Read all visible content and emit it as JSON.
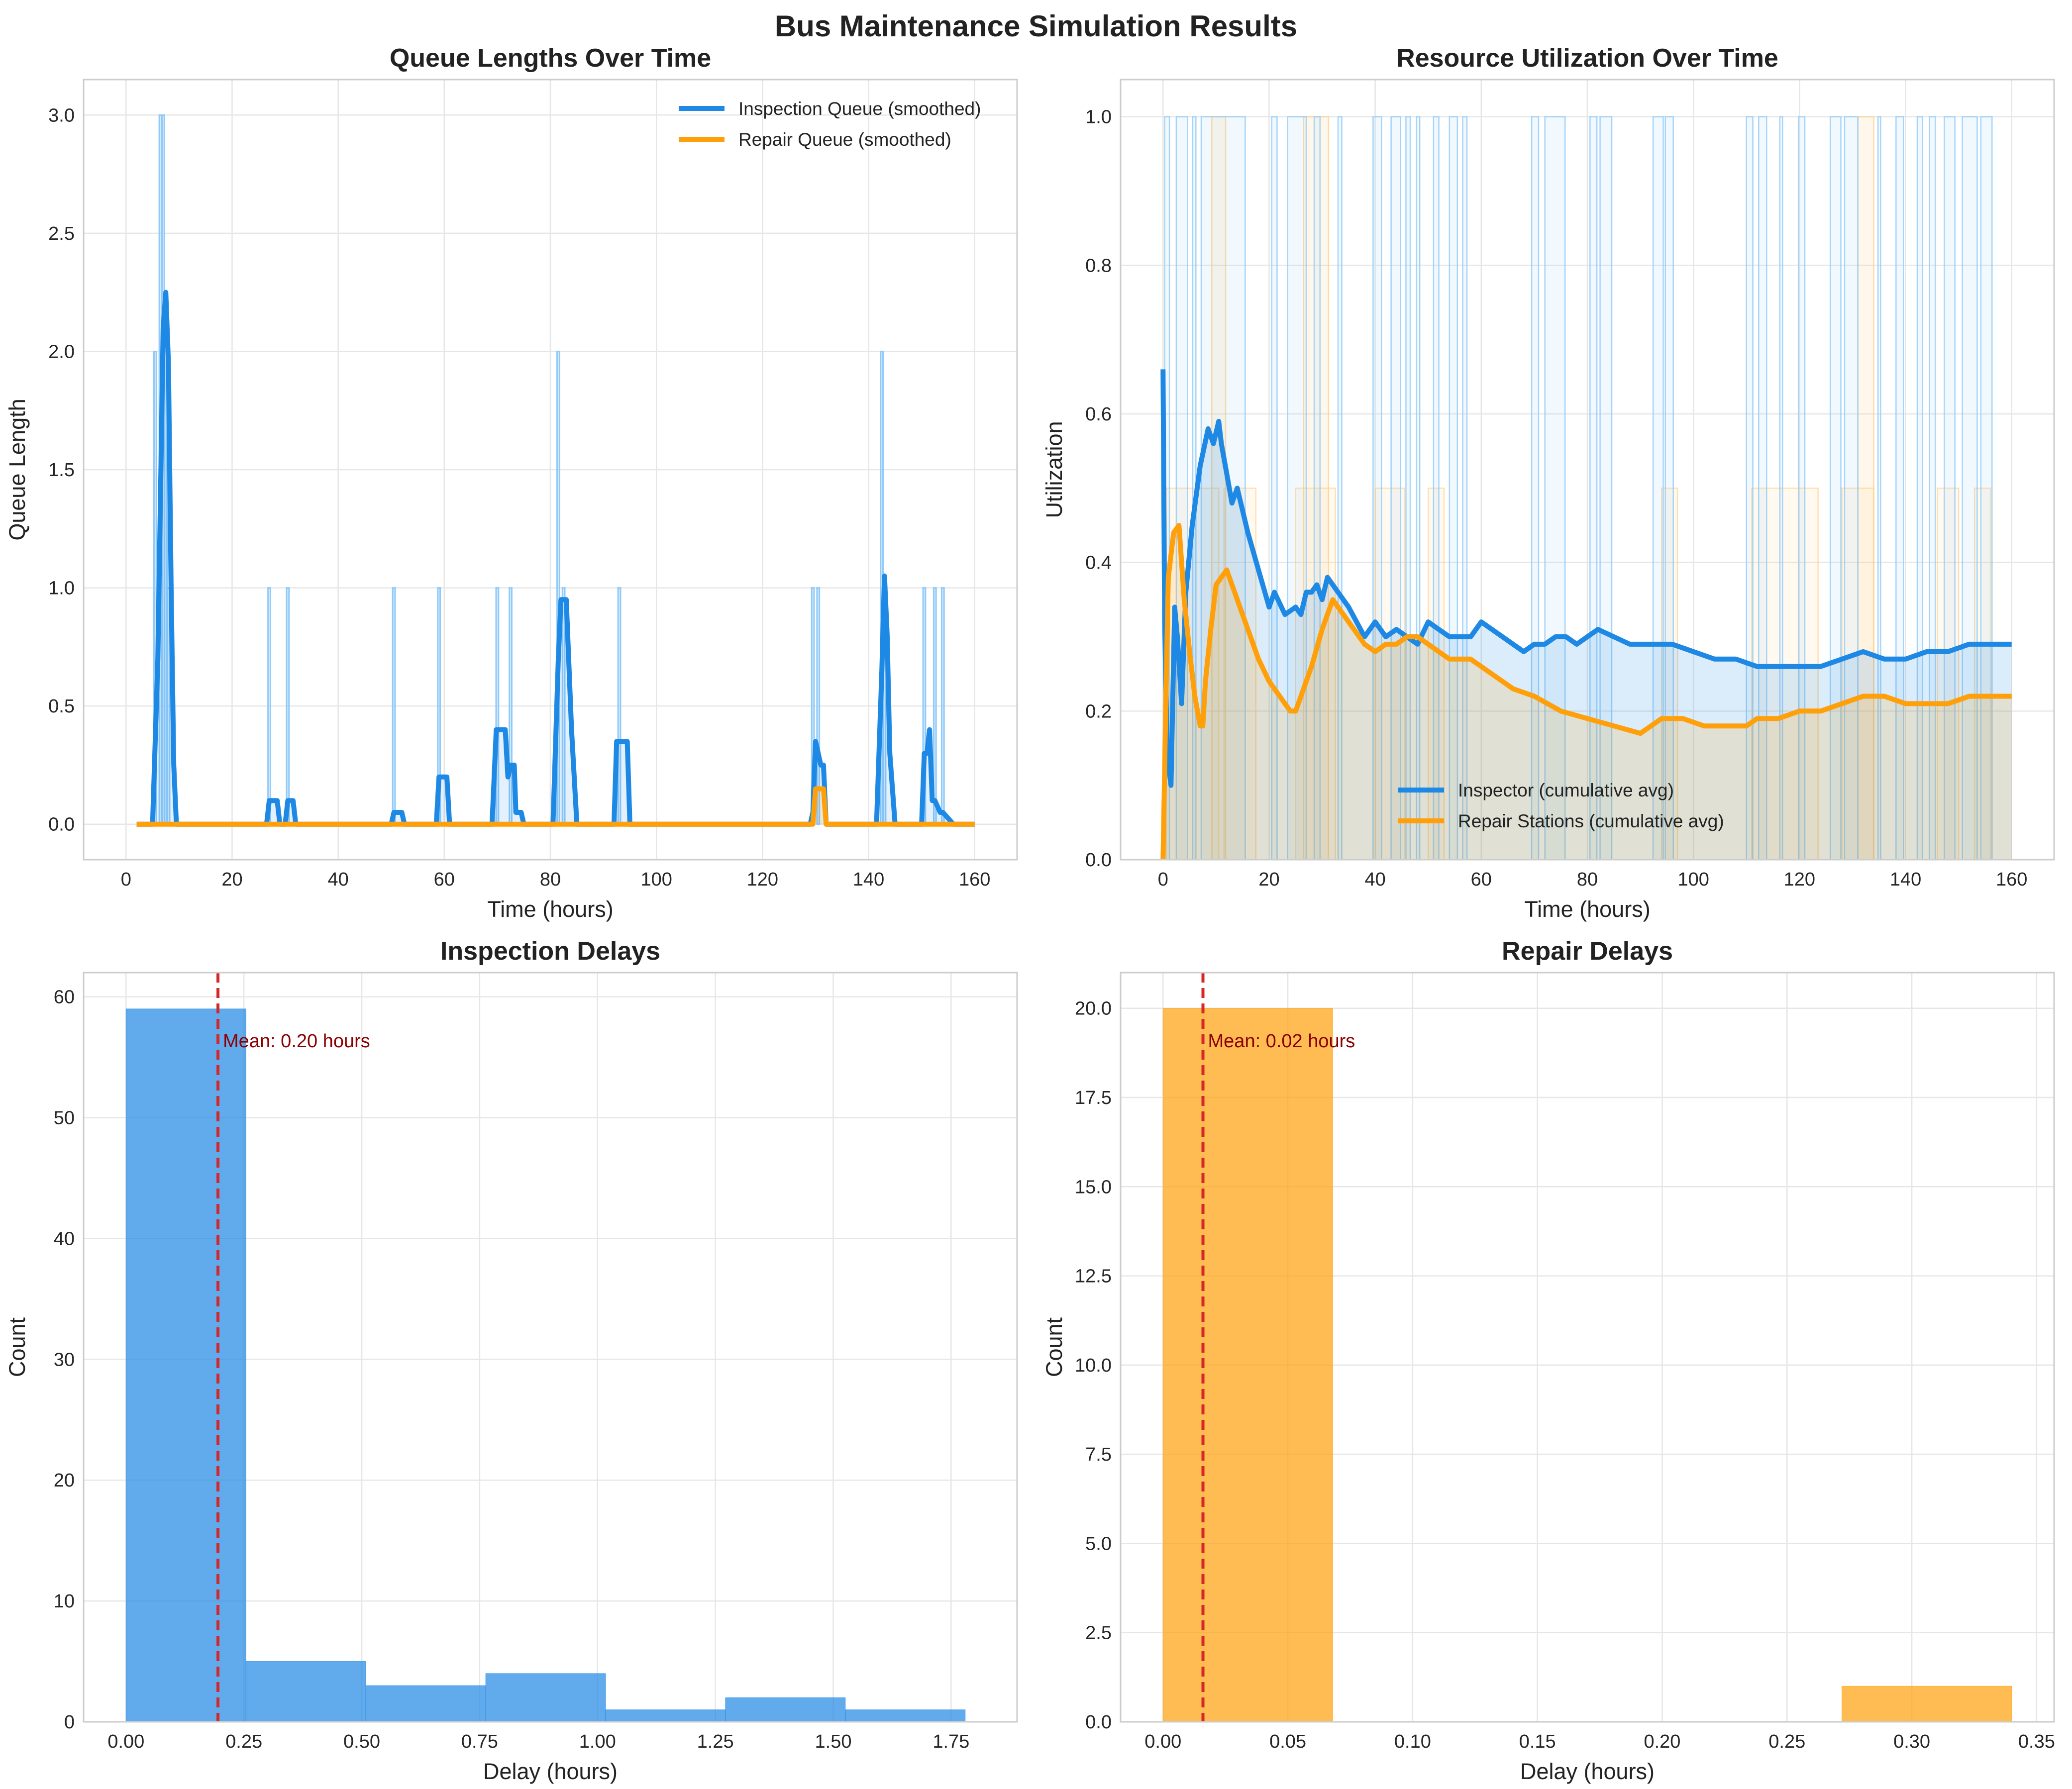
{
  "figure": {
    "suptitle": "Bus Maintenance Simulation Results"
  },
  "colors": {
    "inspection": "#1e88e5",
    "inspection_light": "#90caf9",
    "repair": "#ff9f0a",
    "repair_light": "#ffcc80",
    "mean_line": "#d62728",
    "annotation": "#8b0000",
    "grid": "#e6e6e6",
    "spine": "#cccccc"
  },
  "chart_data": [
    {
      "id": "queue",
      "type": "line",
      "title": "Queue Lengths Over Time",
      "xlabel": "Time (hours)",
      "ylabel": "Queue Length",
      "xlim": [
        -8,
        168
      ],
      "ylim": [
        -0.15,
        3.15
      ],
      "xticks": [
        0,
        20,
        40,
        60,
        80,
        100,
        120,
        140,
        160
      ],
      "yticks": [
        0.0,
        0.5,
        1.0,
        1.5,
        2.0,
        2.5,
        3.0
      ],
      "ytick_labels": [
        "0.0",
        "0.5",
        "1.0",
        "1.5",
        "2.0",
        "2.5",
        "3.0"
      ],
      "grid": true,
      "legend": {
        "position": "upper right"
      },
      "series": [
        {
          "name": "Inspection Queue (smoothed)",
          "color_key": "inspection",
          "x": [
            2,
            5,
            5.5,
            6,
            6.5,
            7,
            7.5,
            8,
            8.5,
            9,
            9.5,
            10,
            26.5,
            27,
            28.5,
            29,
            30,
            30.5,
            31.5,
            32,
            50,
            50.5,
            52,
            52.5,
            58.5,
            59,
            60.5,
            61,
            69,
            69.8,
            71.5,
            72,
            72.6,
            73.2,
            73.5,
            74.5,
            75,
            80.5,
            81.5,
            82,
            83,
            84,
            85,
            92,
            92.5,
            94.5,
            95,
            129,
            129.5,
            130,
            130.5,
            131,
            131.5,
            132,
            141.5,
            142.5,
            143,
            143.5,
            144,
            145,
            150,
            150.5,
            151,
            151.5,
            152,
            152.5,
            153.5,
            154,
            156,
            160
          ],
          "y": [
            0,
            0,
            0.35,
            0.7,
            1.4,
            2.1,
            2.25,
            1.95,
            1.0,
            0.25,
            0,
            0,
            0,
            0.1,
            0.1,
            0,
            0,
            0.1,
            0.1,
            0,
            0,
            0.05,
            0.05,
            0,
            0,
            0.2,
            0.2,
            0,
            0,
            0.4,
            0.4,
            0.2,
            0.25,
            0.25,
            0.05,
            0.05,
            0,
            0,
            0.7,
            0.95,
            0.95,
            0.4,
            0,
            0,
            0.35,
            0.35,
            0,
            0,
            0.05,
            0.35,
            0.3,
            0.25,
            0.25,
            0,
            0,
            0.65,
            1.05,
            0.8,
            0.3,
            0,
            0,
            0.3,
            0.3,
            0.4,
            0.1,
            0.1,
            0.05,
            0.05,
            0,
            0
          ]
        },
        {
          "name": "Repair Queue (smoothed)",
          "color_key": "repair",
          "x": [
            2,
            129.5,
            130,
            131.5,
            132,
            160
          ],
          "y": [
            0,
            0,
            0.15,
            0.15,
            0,
            0
          ]
        }
      ],
      "raw_spikes": {
        "x": [
          5.5,
          6.5,
          7,
          7.5,
          8,
          27,
          30.5,
          50.5,
          59,
          70,
          72.5,
          81.5,
          82.5,
          93,
          129.5,
          130.5,
          142.5,
          143,
          150.5,
          152.5,
          154
        ],
        "y": [
          2.0,
          3.0,
          3.0,
          2.0,
          1.0,
          1.0,
          1.0,
          1.0,
          1.0,
          1.0,
          1.0,
          2.0,
          1.0,
          1.0,
          1.0,
          1.0,
          2.0,
          1.0,
          1.0,
          1.0,
          1.0
        ]
      }
    },
    {
      "id": "util",
      "type": "line",
      "title": "Resource Utilization Over Time",
      "xlabel": "Time (hours)",
      "ylabel": "Utilization",
      "xlim": [
        -8,
        168
      ],
      "ylim": [
        0.0,
        1.05
      ],
      "xticks": [
        0,
        20,
        40,
        60,
        80,
        100,
        120,
        140,
        160
      ],
      "yticks": [
        0.0,
        0.2,
        0.4,
        0.6,
        0.8,
        1.0
      ],
      "ytick_labels": [
        "0.0",
        "0.2",
        "0.4",
        "0.6",
        "0.8",
        "1.0"
      ],
      "grid": true,
      "legend": {
        "position": "lower center"
      },
      "series": [
        {
          "name": "Inspector (cumulative avg)",
          "color_key": "inspection",
          "x": [
            0,
            0.3,
            0.8,
            1.5,
            2.2,
            2.7,
            3.5,
            4.3,
            5.5,
            7,
            8.5,
            9.5,
            10.5,
            11,
            12,
            13,
            14,
            16,
            18,
            20,
            21,
            23,
            25,
            26,
            27,
            28,
            29,
            30,
            31,
            33,
            35,
            38,
            40,
            42,
            44,
            46,
            48,
            50,
            52,
            54,
            56,
            58,
            60,
            64,
            68,
            70,
            72,
            74,
            76,
            78,
            80,
            82,
            85,
            88,
            92,
            96,
            100,
            104,
            108,
            112,
            116,
            120,
            124,
            128,
            132,
            136,
            140,
            144,
            148,
            152,
            156,
            160
          ],
          "y": [
            0.66,
            0.32,
            0.14,
            0.1,
            0.34,
            0.3,
            0.21,
            0.36,
            0.45,
            0.53,
            0.58,
            0.56,
            0.59,
            0.56,
            0.52,
            0.48,
            0.5,
            0.44,
            0.39,
            0.34,
            0.36,
            0.33,
            0.34,
            0.33,
            0.36,
            0.36,
            0.37,
            0.35,
            0.38,
            0.36,
            0.34,
            0.3,
            0.32,
            0.3,
            0.31,
            0.3,
            0.29,
            0.32,
            0.31,
            0.3,
            0.3,
            0.3,
            0.32,
            0.3,
            0.28,
            0.29,
            0.29,
            0.3,
            0.3,
            0.29,
            0.3,
            0.31,
            0.3,
            0.29,
            0.29,
            0.29,
            0.28,
            0.27,
            0.27,
            0.26,
            0.26,
            0.26,
            0.26,
            0.27,
            0.28,
            0.27,
            0.27,
            0.28,
            0.28,
            0.29,
            0.29,
            0.29
          ]
        },
        {
          "name": "Repair Stations (cumulative avg)",
          "color_key": "repair",
          "x": [
            0,
            0.5,
            1,
            2,
            3,
            4,
            5,
            6,
            7,
            7.5,
            8,
            9,
            10,
            11,
            12,
            14,
            16,
            18,
            20,
            22,
            24,
            25,
            26,
            28,
            30,
            32,
            34,
            36,
            38,
            40,
            42,
            44,
            46,
            48,
            50,
            52,
            54,
            56,
            58,
            62,
            66,
            70,
            75,
            80,
            85,
            90,
            94,
            96,
            98,
            102,
            106,
            110,
            112,
            113,
            116,
            120,
            124,
            128,
            132,
            136,
            140,
            144,
            148,
            152,
            156,
            160
          ],
          "y": [
            0.0,
            0.2,
            0.38,
            0.44,
            0.45,
            0.35,
            0.28,
            0.22,
            0.18,
            0.18,
            0.24,
            0.31,
            0.37,
            0.38,
            0.39,
            0.35,
            0.31,
            0.27,
            0.24,
            0.22,
            0.2,
            0.2,
            0.22,
            0.26,
            0.31,
            0.35,
            0.33,
            0.31,
            0.29,
            0.28,
            0.29,
            0.29,
            0.3,
            0.3,
            0.29,
            0.28,
            0.27,
            0.27,
            0.27,
            0.25,
            0.23,
            0.22,
            0.2,
            0.19,
            0.18,
            0.17,
            0.19,
            0.19,
            0.19,
            0.18,
            0.18,
            0.18,
            0.19,
            0.19,
            0.19,
            0.2,
            0.2,
            0.21,
            0.22,
            0.22,
            0.21,
            0.21,
            0.21,
            0.22,
            0.22,
            0.22
          ]
        }
      ],
      "raw_inspector_on_intervals": [
        [
          0.3,
          1.2
        ],
        [
          2.5,
          4.6
        ],
        [
          5.6,
          6.2
        ],
        [
          7.2,
          15.5
        ],
        [
          20.5,
          21.5
        ],
        [
          23.5,
          27
        ],
        [
          28.5,
          29.6
        ],
        [
          33,
          33.7
        ],
        [
          39.6,
          41.2
        ],
        [
          43,
          44.8
        ],
        [
          45.8,
          46.6
        ],
        [
          47.8,
          48.4
        ],
        [
          51,
          52
        ],
        [
          54,
          55.5
        ],
        [
          56.5,
          57.3
        ],
        [
          69.5,
          70.8
        ],
        [
          72,
          75.8
        ],
        [
          80.5,
          81.8
        ],
        [
          82.4,
          84.6
        ],
        [
          92.4,
          94.3
        ],
        [
          94.7,
          96.2
        ],
        [
          110,
          111.2
        ],
        [
          112.3,
          113.8
        ],
        [
          116.3,
          116.8
        ],
        [
          119.8,
          121
        ],
        [
          125.8,
          127.8
        ],
        [
          128.5,
          131
        ],
        [
          134.8,
          135.3
        ],
        [
          138.2,
          139.6
        ],
        [
          142.2,
          143.2
        ],
        [
          144.5,
          145.6
        ],
        [
          147.3,
          149.3
        ],
        [
          150.7,
          153.5
        ],
        [
          154.2,
          156.3
        ]
      ],
      "raw_repair_half_intervals": [
        [
          0.6,
          10.5
        ],
        [
          11.5,
          17.5
        ],
        [
          25,
          32.5
        ],
        [
          40,
          45.5
        ],
        [
          50,
          53
        ],
        [
          94,
          97
        ],
        [
          111,
          123.5
        ],
        [
          128,
          134
        ],
        [
          146,
          150
        ],
        [
          153,
          156
        ]
      ],
      "raw_repair_full_intervals": [
        [
          9.2,
          11.8
        ],
        [
          26.5,
          31.2
        ],
        [
          131,
          134
        ]
      ]
    },
    {
      "id": "insp_hist",
      "type": "bar",
      "title": "Inspection Delays",
      "xlabel": "Delay (hours)",
      "ylabel": "Count",
      "xlim": [
        -0.09,
        1.89
      ],
      "ylim": [
        0,
        62
      ],
      "xticks": [
        0.0,
        0.25,
        0.5,
        0.75,
        1.0,
        1.25,
        1.5,
        1.75
      ],
      "xtick_labels": [
        "0.00",
        "0.25",
        "0.50",
        "0.75",
        "1.00",
        "1.25",
        "1.50",
        "1.75"
      ],
      "yticks": [
        0,
        10,
        20,
        30,
        40,
        50,
        60
      ],
      "ytick_labels": [
        "0",
        "10",
        "20",
        "30",
        "40",
        "50",
        "60"
      ],
      "grid": true,
      "color_key": "inspection",
      "bin_edges": [
        0.0,
        0.2543,
        0.5086,
        0.7629,
        1.0171,
        1.2714,
        1.5257,
        1.78
      ],
      "counts": [
        59,
        5,
        3,
        4,
        1,
        2,
        1
      ],
      "mean": 0.195,
      "mean_label": "Mean: 0.20 hours"
    },
    {
      "id": "rep_hist",
      "type": "bar",
      "title": "Repair Delays",
      "xlabel": "Delay (hours)",
      "ylabel": "Count",
      "xlim": [
        -0.017,
        0.357
      ],
      "ylim": [
        0,
        21
      ],
      "xticks": [
        0.0,
        0.05,
        0.1,
        0.15,
        0.2,
        0.25,
        0.3,
        0.35
      ],
      "xtick_labels": [
        "0.00",
        "0.05",
        "0.10",
        "0.15",
        "0.20",
        "0.25",
        "0.30",
        "0.35"
      ],
      "yticks": [
        0,
        2.5,
        5,
        7.5,
        10,
        12.5,
        15,
        17.5,
        20
      ],
      "ytick_labels": [
        "0.0",
        "2.5",
        "5.0",
        "7.5",
        "10.0",
        "12.5",
        "15.0",
        "17.5",
        "20.0"
      ],
      "grid": true,
      "color_key": "repair",
      "bin_edges": [
        0.0,
        0.068,
        0.136,
        0.204,
        0.272,
        0.34
      ],
      "counts": [
        20,
        0,
        0,
        0,
        1
      ],
      "mean": 0.016,
      "mean_label": "Mean: 0.02 hours"
    }
  ]
}
